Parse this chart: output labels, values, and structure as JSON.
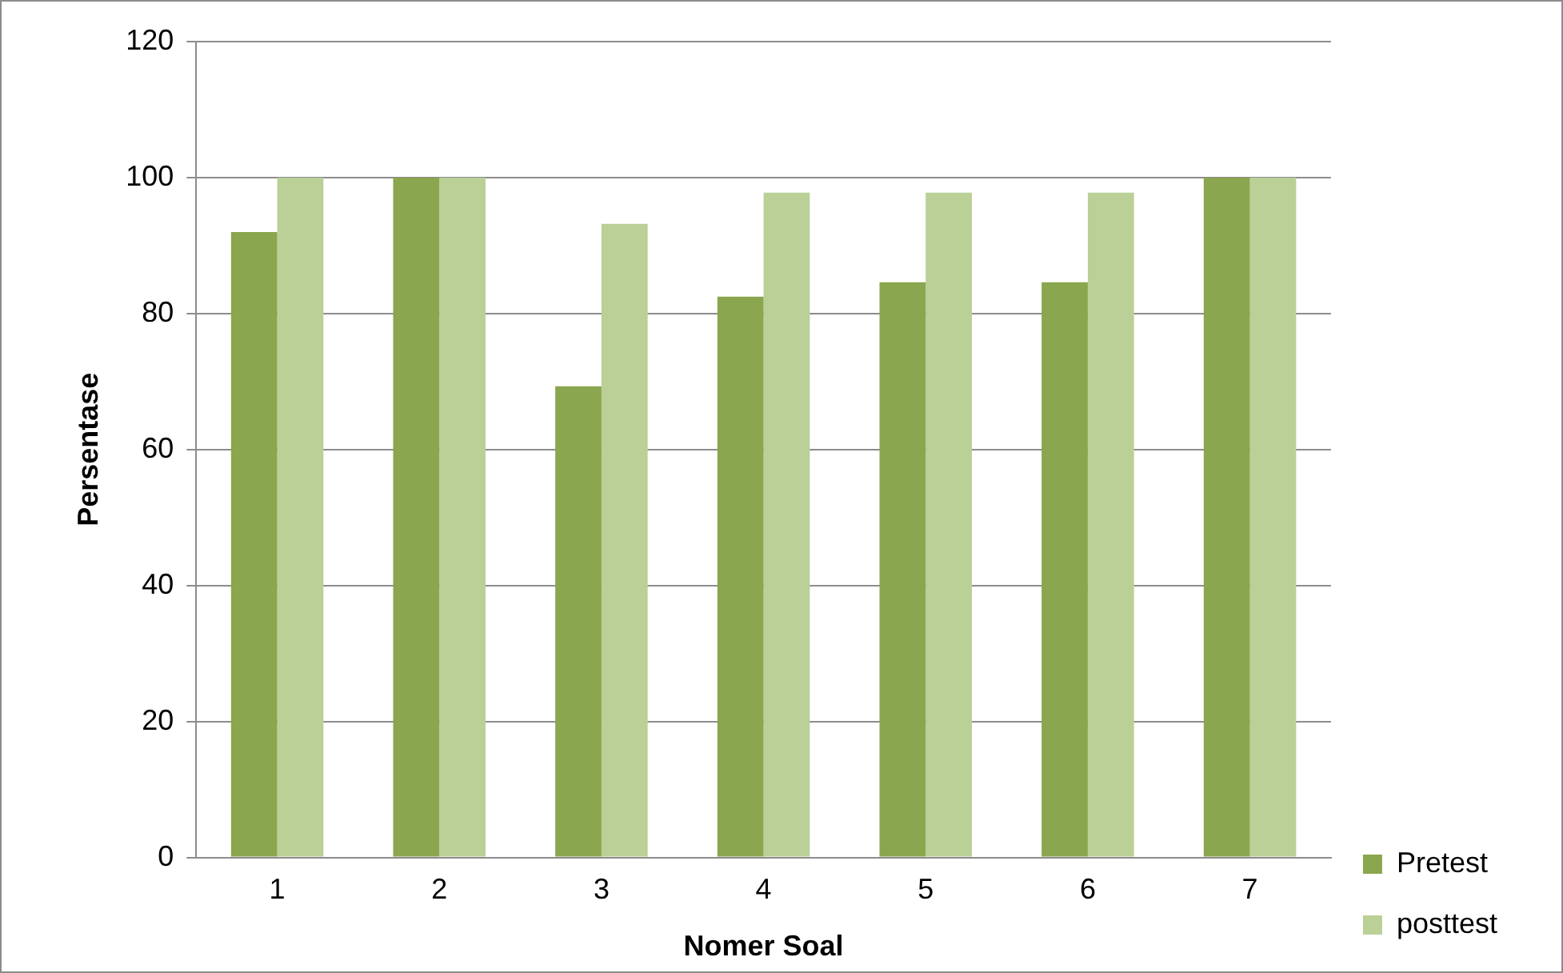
{
  "chart_data": {
    "type": "bar",
    "xlabel": "Nomer Soal",
    "ylabel": "Persentase",
    "categories": [
      "1",
      "2",
      "3",
      "4",
      "5",
      "6",
      "7"
    ],
    "series": [
      {
        "name": "Pretest",
        "color": "#8aa64e",
        "values": [
          92,
          100,
          69.3,
          82.5,
          84.6,
          84.6,
          100
        ]
      },
      {
        "name": "posttest",
        "color": "#bad097",
        "values": [
          100,
          100,
          93.2,
          97.8,
          97.8,
          97.8,
          100
        ]
      }
    ],
    "ylim": [
      0,
      120
    ],
    "yticks": [
      0,
      20,
      40,
      60,
      80,
      100,
      120
    ],
    "grid": "y",
    "legend": "bottom right"
  }
}
